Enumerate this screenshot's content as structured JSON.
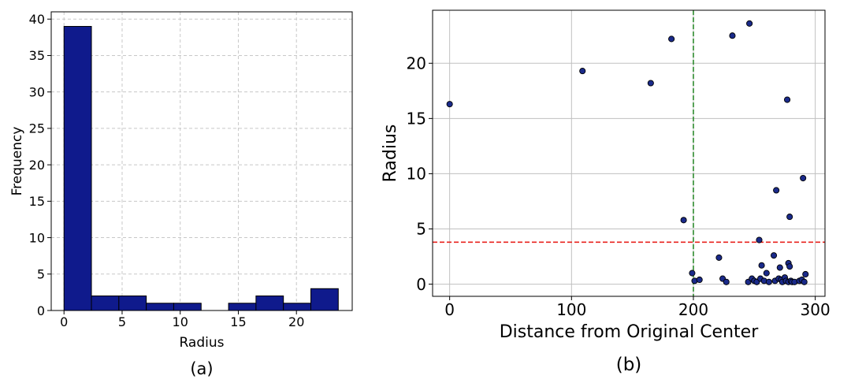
{
  "chart_data": [
    {
      "type": "bar",
      "subtitle": "(a)",
      "xlabel": "Radius",
      "ylabel": "Frequency",
      "xlim": [
        -1.1,
        24.8
      ],
      "ylim": [
        0,
        41
      ],
      "xticks": [
        0,
        5,
        10,
        15,
        20
      ],
      "yticks": [
        0,
        5,
        10,
        15,
        20,
        25,
        30,
        35,
        40
      ],
      "grid": true,
      "bar_color": "#0f1a8c",
      "bins": [
        {
          "x0": 0.0,
          "x1": 2.36,
          "count": 39
        },
        {
          "x0": 2.36,
          "x1": 4.72,
          "count": 2
        },
        {
          "x0": 4.72,
          "x1": 7.08,
          "count": 2
        },
        {
          "x0": 7.08,
          "x1": 9.44,
          "count": 1
        },
        {
          "x0": 9.44,
          "x1": 11.8,
          "count": 1
        },
        {
          "x0": 11.8,
          "x1": 14.16,
          "count": 0
        },
        {
          "x0": 14.16,
          "x1": 16.52,
          "count": 1
        },
        {
          "x0": 16.52,
          "x1": 18.88,
          "count": 2
        },
        {
          "x0": 18.88,
          "x1": 21.24,
          "count": 1
        },
        {
          "x0": 21.24,
          "x1": 23.6,
          "count": 3
        }
      ]
    },
    {
      "type": "scatter",
      "subtitle": "(b)",
      "xlabel": "Distance from Original Center",
      "ylabel": "Radius",
      "xlim": [
        -14,
        308
      ],
      "ylim": [
        -1.1,
        24.8
      ],
      "xticks": [
        0,
        100,
        200,
        300
      ],
      "yticks": [
        0,
        5,
        10,
        15,
        20
      ],
      "grid": true,
      "point_color": "#1a2a8a",
      "vline": {
        "x": 200,
        "color": "#2e8b2e",
        "style": "dashed"
      },
      "hline": {
        "y": 3.8,
        "color": "#e8231e",
        "style": "dashed"
      },
      "points": [
        [
          0,
          16.3
        ],
        [
          109,
          19.3
        ],
        [
          165,
          18.2
        ],
        [
          182,
          22.2
        ],
        [
          192,
          5.8
        ],
        [
          199,
          1.0
        ],
        [
          201,
          0.3
        ],
        [
          205,
          0.4
        ],
        [
          221,
          2.4
        ],
        [
          224,
          0.5
        ],
        [
          227,
          0.2
        ],
        [
          232,
          22.5
        ],
        [
          246,
          23.6
        ],
        [
          245,
          0.2
        ],
        [
          248,
          0.5
        ],
        [
          250,
          0.3
        ],
        [
          252,
          0.2
        ],
        [
          254,
          4.0
        ],
        [
          255,
          0.5
        ],
        [
          256,
          1.7
        ],
        [
          258,
          0.3
        ],
        [
          260,
          1.0
        ],
        [
          262,
          0.2
        ],
        [
          266,
          2.6
        ],
        [
          267,
          0.3
        ],
        [
          268,
          8.5
        ],
        [
          270,
          0.5
        ],
        [
          271,
          1.5
        ],
        [
          272,
          0.4
        ],
        [
          273,
          0.2
        ],
        [
          275,
          0.6
        ],
        [
          276,
          0.3
        ],
        [
          277,
          16.7
        ],
        [
          278,
          1.9
        ],
        [
          278,
          0.2
        ],
        [
          279,
          6.1
        ],
        [
          279,
          1.6
        ],
        [
          280,
          0.3
        ],
        [
          281,
          0.2
        ],
        [
          283,
          0.2
        ],
        [
          287,
          0.3
        ],
        [
          289,
          0.4
        ],
        [
          290,
          9.6
        ],
        [
          291,
          0.2
        ],
        [
          292,
          0.9
        ]
      ]
    }
  ]
}
